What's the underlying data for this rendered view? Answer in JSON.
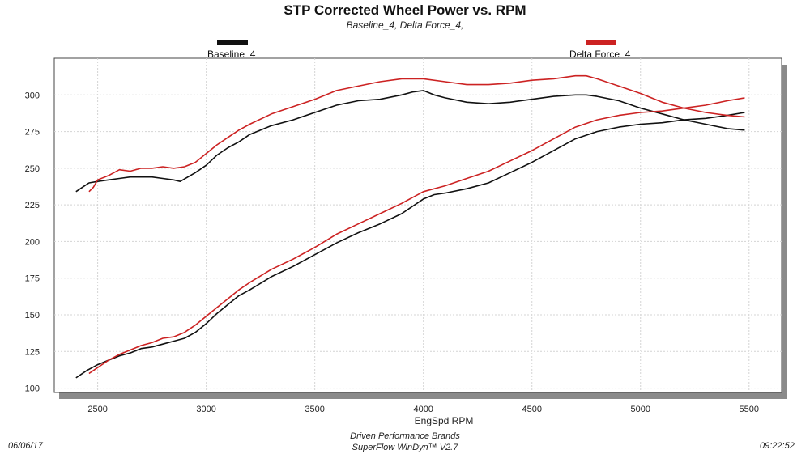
{
  "chart_data": {
    "type": "line",
    "title": "STP Corrected Wheel Power vs. RPM",
    "subtitle": "Baseline_4, Delta Force_4,",
    "xlabel": "EngSpd  RPM",
    "ylabel": "",
    "xlim": [
      2300,
      5650
    ],
    "ylim": [
      97,
      325
    ],
    "x_ticks": [
      2500,
      3000,
      3500,
      4000,
      4500,
      5000,
      5500
    ],
    "y_ticks": [
      100,
      125,
      150,
      175,
      200,
      225,
      250,
      275,
      300
    ],
    "grid": true,
    "legend_placement": "top",
    "series": [
      {
        "name": "Baseline_4",
        "color": "#111111",
        "curves": [
          [
            [
              2400,
              234
            ],
            [
              2440,
              238
            ],
            [
              2460,
              240
            ],
            [
              2500,
              241
            ],
            [
              2550,
              242
            ],
            [
              2600,
              243
            ],
            [
              2650,
              244
            ],
            [
              2700,
              244
            ],
            [
              2750,
              244
            ],
            [
              2800,
              243
            ],
            [
              2850,
              242
            ],
            [
              2880,
              241
            ],
            [
              2950,
              247
            ],
            [
              3000,
              252
            ],
            [
              3050,
              259
            ],
            [
              3100,
              264
            ],
            [
              3150,
              268
            ],
            [
              3200,
              273
            ],
            [
              3300,
              279
            ],
            [
              3400,
              283
            ],
            [
              3500,
              288
            ],
            [
              3600,
              293
            ],
            [
              3700,
              296
            ],
            [
              3800,
              297
            ],
            [
              3900,
              300
            ],
            [
              3950,
              302
            ],
            [
              4000,
              303
            ],
            [
              4050,
              300
            ],
            [
              4100,
              298
            ],
            [
              4200,
              295
            ],
            [
              4300,
              294
            ],
            [
              4400,
              295
            ],
            [
              4500,
              297
            ],
            [
              4600,
              299
            ],
            [
              4700,
              300
            ],
            [
              4750,
              300
            ],
            [
              4800,
              299
            ],
            [
              4900,
              296
            ],
            [
              5000,
              291
            ],
            [
              5100,
              287
            ],
            [
              5200,
              283
            ],
            [
              5300,
              280
            ],
            [
              5400,
              277
            ],
            [
              5480,
              276
            ]
          ],
          [
            [
              2400,
              107
            ],
            [
              2450,
              112
            ],
            [
              2500,
              116
            ],
            [
              2550,
              119
            ],
            [
              2600,
              122
            ],
            [
              2650,
              124
            ],
            [
              2700,
              127
            ],
            [
              2750,
              128
            ],
            [
              2800,
              130
            ],
            [
              2850,
              132
            ],
            [
              2900,
              134
            ],
            [
              2950,
              138
            ],
            [
              3000,
              144
            ],
            [
              3050,
              151
            ],
            [
              3100,
              157
            ],
            [
              3150,
              163
            ],
            [
              3200,
              167
            ],
            [
              3300,
              176
            ],
            [
              3400,
              183
            ],
            [
              3500,
              191
            ],
            [
              3600,
              199
            ],
            [
              3700,
              206
            ],
            [
              3800,
              212
            ],
            [
              3900,
              219
            ],
            [
              4000,
              229
            ],
            [
              4050,
              232
            ],
            [
              4100,
              233
            ],
            [
              4200,
              236
            ],
            [
              4300,
              240
            ],
            [
              4400,
              247
            ],
            [
              4500,
              254
            ],
            [
              4600,
              262
            ],
            [
              4700,
              270
            ],
            [
              4800,
              275
            ],
            [
              4900,
              278
            ],
            [
              5000,
              280
            ],
            [
              5100,
              281
            ],
            [
              5200,
              283
            ],
            [
              5300,
              284
            ],
            [
              5400,
              286
            ],
            [
              5480,
              288
            ]
          ]
        ]
      },
      {
        "name": "Delta Force_4",
        "color": "#cc2222",
        "curves": [
          [
            [
              2460,
              234
            ],
            [
              2480,
              237
            ],
            [
              2500,
              242
            ],
            [
              2550,
              245
            ],
            [
              2600,
              249
            ],
            [
              2650,
              248
            ],
            [
              2700,
              250
            ],
            [
              2750,
              250
            ],
            [
              2800,
              251
            ],
            [
              2850,
              250
            ],
            [
              2900,
              251
            ],
            [
              2950,
              254
            ],
            [
              3000,
              260
            ],
            [
              3050,
              266
            ],
            [
              3100,
              271
            ],
            [
              3150,
              276
            ],
            [
              3200,
              280
            ],
            [
              3300,
              287
            ],
            [
              3400,
              292
            ],
            [
              3500,
              297
            ],
            [
              3600,
              303
            ],
            [
              3700,
              306
            ],
            [
              3800,
              309
            ],
            [
              3900,
              311
            ],
            [
              4000,
              311
            ],
            [
              4100,
              309
            ],
            [
              4200,
              307
            ],
            [
              4300,
              307
            ],
            [
              4400,
              308
            ],
            [
              4500,
              310
            ],
            [
              4600,
              311
            ],
            [
              4700,
              313
            ],
            [
              4750,
              313
            ],
            [
              4800,
              311
            ],
            [
              4900,
              306
            ],
            [
              5000,
              301
            ],
            [
              5100,
              295
            ],
            [
              5200,
              291
            ],
            [
              5300,
              288
            ],
            [
              5400,
              286
            ],
            [
              5480,
              285
            ]
          ],
          [
            [
              2460,
              110
            ],
            [
              2500,
              114
            ],
            [
              2550,
              119
            ],
            [
              2600,
              123
            ],
            [
              2650,
              126
            ],
            [
              2700,
              129
            ],
            [
              2750,
              131
            ],
            [
              2800,
              134
            ],
            [
              2850,
              135
            ],
            [
              2900,
              138
            ],
            [
              2950,
              143
            ],
            [
              3000,
              149
            ],
            [
              3050,
              155
            ],
            [
              3100,
              161
            ],
            [
              3150,
              167
            ],
            [
              3200,
              172
            ],
            [
              3300,
              181
            ],
            [
              3400,
              188
            ],
            [
              3500,
              196
            ],
            [
              3600,
              205
            ],
            [
              3700,
              212
            ],
            [
              3800,
              219
            ],
            [
              3900,
              226
            ],
            [
              4000,
              234
            ],
            [
              4100,
              238
            ],
            [
              4200,
              243
            ],
            [
              4300,
              248
            ],
            [
              4400,
              255
            ],
            [
              4500,
              262
            ],
            [
              4600,
              270
            ],
            [
              4700,
              278
            ],
            [
              4800,
              283
            ],
            [
              4900,
              286
            ],
            [
              5000,
              288
            ],
            [
              5100,
              289
            ],
            [
              5200,
              291
            ],
            [
              5300,
              293
            ],
            [
              5400,
              296
            ],
            [
              5480,
              298
            ]
          ]
        ]
      }
    ]
  },
  "footer": {
    "date": "06/06/17",
    "company": "Driven Performance Brands",
    "software": "SuperFlow WinDyn™ V2.7",
    "time": "09:22:52"
  }
}
